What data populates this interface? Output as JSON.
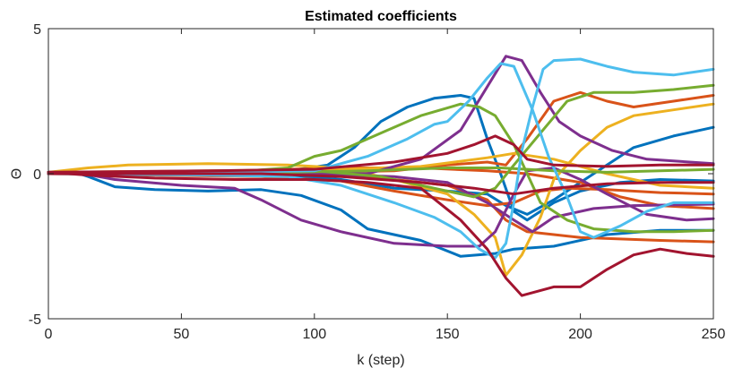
{
  "chart_data": {
    "type": "line",
    "title": "Estimated coefficients",
    "xlabel": "k (step)",
    "ylabel": "Θ",
    "xlim": [
      0,
      250
    ],
    "ylim": [
      -5,
      5
    ],
    "xticks": [
      0,
      50,
      100,
      150,
      200,
      250
    ],
    "yticks": [
      -5,
      0,
      5
    ],
    "xtick_labels": [
      "0",
      "50",
      "100",
      "150",
      "200",
      "250"
    ],
    "ytick_labels": [
      "-5",
      "0",
      "5"
    ],
    "grid": false,
    "legend": "none",
    "series": [
      {
        "color": "#0072BD",
        "points": [
          [
            0,
            0.05
          ],
          [
            10,
            0.05
          ],
          [
            15,
            -0.1
          ],
          [
            25,
            -0.45
          ],
          [
            40,
            -0.55
          ],
          [
            60,
            -0.6
          ],
          [
            80,
            -0.55
          ],
          [
            95,
            -0.75
          ],
          [
            110,
            -1.25
          ],
          [
            120,
            -1.9
          ],
          [
            140,
            -2.3
          ],
          [
            155,
            -2.85
          ],
          [
            168,
            -2.75
          ],
          [
            175,
            -2.6
          ],
          [
            190,
            -2.5
          ],
          [
            210,
            -2.1
          ],
          [
            230,
            -1.95
          ],
          [
            250,
            -1.95
          ]
        ]
      },
      {
        "color": "#0072BD",
        "points": [
          [
            0,
            0.0
          ],
          [
            30,
            0.05
          ],
          [
            60,
            0.05
          ],
          [
            90,
            0.1
          ],
          [
            105,
            0.3
          ],
          [
            115,
            0.9
          ],
          [
            125,
            1.8
          ],
          [
            135,
            2.3
          ],
          [
            145,
            2.6
          ],
          [
            155,
            2.7
          ],
          [
            160,
            2.6
          ],
          [
            165,
            1.2
          ],
          [
            170,
            0.0
          ],
          [
            175,
            -1.3
          ],
          [
            180,
            -1.6
          ],
          [
            190,
            -1.0
          ],
          [
            200,
            -0.6
          ],
          [
            215,
            -0.3
          ],
          [
            230,
            -0.2
          ],
          [
            250,
            -0.25
          ]
        ]
      },
      {
        "color": "#0072BD",
        "points": [
          [
            0,
            0.0
          ],
          [
            50,
            0.0
          ],
          [
            90,
            -0.05
          ],
          [
            110,
            -0.2
          ],
          [
            130,
            -0.5
          ],
          [
            150,
            -0.6
          ],
          [
            165,
            -0.7
          ],
          [
            172,
            -1.1
          ],
          [
            180,
            -1.4
          ],
          [
            190,
            -0.9
          ],
          [
            200,
            -0.3
          ],
          [
            210,
            0.3
          ],
          [
            220,
            0.9
          ],
          [
            235,
            1.3
          ],
          [
            250,
            1.6
          ]
        ]
      },
      {
        "color": "#D95319",
        "points": [
          [
            0,
            0.0
          ],
          [
            40,
            -0.05
          ],
          [
            80,
            -0.1
          ],
          [
            110,
            -0.25
          ],
          [
            130,
            -0.6
          ],
          [
            150,
            -0.9
          ],
          [
            165,
            -1.1
          ],
          [
            175,
            -1.0
          ],
          [
            185,
            -0.6
          ],
          [
            195,
            -0.5
          ],
          [
            210,
            -0.55
          ],
          [
            230,
            -0.65
          ],
          [
            250,
            -0.7
          ]
        ]
      },
      {
        "color": "#D95319",
        "points": [
          [
            0,
            0.0
          ],
          [
            60,
            0.05
          ],
          [
            100,
            0.05
          ],
          [
            130,
            0.1
          ],
          [
            150,
            0.3
          ],
          [
            165,
            0.4
          ],
          [
            172,
            0.3
          ],
          [
            180,
            1.2
          ],
          [
            190,
            2.5
          ],
          [
            200,
            2.8
          ],
          [
            210,
            2.5
          ],
          [
            220,
            2.3
          ],
          [
            235,
            2.5
          ],
          [
            250,
            2.7
          ]
        ]
      },
      {
        "color": "#D95319",
        "points": [
          [
            0,
            0.0
          ],
          [
            80,
            0.0
          ],
          [
            120,
            -0.1
          ],
          [
            150,
            -0.4
          ],
          [
            165,
            -0.9
          ],
          [
            172,
            -1.6
          ],
          [
            180,
            -2.0
          ],
          [
            190,
            -2.1
          ],
          [
            200,
            -2.2
          ],
          [
            215,
            -2.25
          ],
          [
            230,
            -2.3
          ],
          [
            250,
            -2.35
          ]
        ]
      },
      {
        "color": "#D95319",
        "points": [
          [
            0,
            0.05
          ],
          [
            70,
            0.1
          ],
          [
            110,
            0.2
          ],
          [
            140,
            0.2
          ],
          [
            165,
            0.1
          ],
          [
            180,
            0.0
          ],
          [
            200,
            -0.3
          ],
          [
            215,
            -0.8
          ],
          [
            230,
            -1.1
          ],
          [
            250,
            -1.2
          ]
        ]
      },
      {
        "color": "#EDB120",
        "points": [
          [
            0,
            0.05
          ],
          [
            15,
            0.2
          ],
          [
            30,
            0.3
          ],
          [
            60,
            0.35
          ],
          [
            90,
            0.3
          ],
          [
            110,
            0.2
          ],
          [
            130,
            -0.2
          ],
          [
            150,
            -0.7
          ],
          [
            160,
            -1.4
          ],
          [
            168,
            -2.2
          ],
          [
            172,
            -3.5
          ],
          [
            178,
            -2.8
          ],
          [
            185,
            -1.5
          ],
          [
            190,
            -0.2
          ],
          [
            200,
            0.8
          ],
          [
            210,
            1.6
          ],
          [
            220,
            2.0
          ],
          [
            235,
            2.2
          ],
          [
            250,
            2.4
          ]
        ]
      },
      {
        "color": "#EDB120",
        "points": [
          [
            0,
            0.05
          ],
          [
            60,
            0.1
          ],
          [
            110,
            0.15
          ],
          [
            140,
            0.25
          ],
          [
            165,
            0.55
          ],
          [
            175,
            0.7
          ],
          [
            190,
            0.5
          ],
          [
            210,
            0.0
          ],
          [
            230,
            -0.4
          ],
          [
            250,
            -0.5
          ]
        ]
      },
      {
        "color": "#7E2F8E",
        "points": [
          [
            0,
            0.05
          ],
          [
            10,
            0.05
          ],
          [
            25,
            -0.2
          ],
          [
            50,
            -0.4
          ],
          [
            70,
            -0.5
          ],
          [
            80,
            -0.9
          ],
          [
            95,
            -1.6
          ],
          [
            110,
            -2.0
          ],
          [
            130,
            -2.4
          ],
          [
            150,
            -2.5
          ],
          [
            162,
            -2.5
          ],
          [
            168,
            -2.0
          ],
          [
            175,
            -0.7
          ],
          [
            180,
            0.1
          ],
          [
            190,
            0.2
          ],
          [
            200,
            -0.2
          ],
          [
            210,
            -0.7
          ],
          [
            225,
            -1.4
          ],
          [
            240,
            -1.6
          ],
          [
            250,
            -1.55
          ]
        ]
      },
      {
        "color": "#7E2F8E",
        "points": [
          [
            0,
            0.05
          ],
          [
            90,
            0.0
          ],
          [
            120,
            0.0
          ],
          [
            140,
            0.5
          ],
          [
            155,
            1.5
          ],
          [
            165,
            3.0
          ],
          [
            172,
            4.05
          ],
          [
            178,
            3.9
          ],
          [
            185,
            2.8
          ],
          [
            192,
            1.8
          ],
          [
            200,
            1.3
          ],
          [
            212,
            0.8
          ],
          [
            225,
            0.5
          ],
          [
            250,
            0.35
          ]
        ]
      },
      {
        "color": "#7E2F8E",
        "points": [
          [
            0,
            0.0
          ],
          [
            60,
            0.0
          ],
          [
            100,
            0.0
          ],
          [
            130,
            -0.1
          ],
          [
            150,
            -0.3
          ],
          [
            165,
            -1.0
          ],
          [
            175,
            -1.6
          ],
          [
            182,
            -2.0
          ],
          [
            190,
            -1.5
          ],
          [
            205,
            -1.2
          ],
          [
            220,
            -1.1
          ],
          [
            250,
            -1.05
          ]
        ]
      },
      {
        "color": "#77AC30",
        "points": [
          [
            0,
            0.0
          ],
          [
            60,
            0.0
          ],
          [
            90,
            0.2
          ],
          [
            100,
            0.6
          ],
          [
            110,
            0.8
          ],
          [
            125,
            1.4
          ],
          [
            140,
            2.0
          ],
          [
            155,
            2.4
          ],
          [
            162,
            2.3
          ],
          [
            168,
            2.0
          ],
          [
            175,
            1.0
          ],
          [
            180,
            0.0
          ],
          [
            185,
            -1.0
          ],
          [
            195,
            -1.6
          ],
          [
            205,
            -1.9
          ],
          [
            220,
            -2.0
          ],
          [
            235,
            -2.0
          ],
          [
            250,
            -1.95
          ]
        ]
      },
      {
        "color": "#77AC30",
        "points": [
          [
            0,
            0.0
          ],
          [
            70,
            0.05
          ],
          [
            100,
            0.1
          ],
          [
            125,
            -0.1
          ],
          [
            145,
            -0.5
          ],
          [
            160,
            -0.8
          ],
          [
            168,
            -0.5
          ],
          [
            175,
            0.3
          ],
          [
            185,
            1.4
          ],
          [
            195,
            2.5
          ],
          [
            205,
            2.8
          ],
          [
            220,
            2.8
          ],
          [
            235,
            2.9
          ],
          [
            250,
            3.05
          ]
        ]
      },
      {
        "color": "#77AC30",
        "points": [
          [
            0,
            0.0
          ],
          [
            60,
            0.0
          ],
          [
            90,
            0.05
          ],
          [
            120,
            0.1
          ],
          [
            150,
            0.2
          ],
          [
            170,
            0.2
          ],
          [
            190,
            0.1
          ],
          [
            210,
            0.05
          ],
          [
            230,
            0.1
          ],
          [
            250,
            0.15
          ]
        ]
      },
      {
        "color": "#4DBEEE",
        "points": [
          [
            0,
            0.0
          ],
          [
            60,
            -0.05
          ],
          [
            90,
            -0.1
          ],
          [
            110,
            -0.4
          ],
          [
            130,
            -1.0
          ],
          [
            145,
            -1.5
          ],
          [
            155,
            -2.0
          ],
          [
            162,
            -2.6
          ],
          [
            168,
            -2.9
          ],
          [
            172,
            -2.4
          ],
          [
            175,
            -1.0
          ],
          [
            178,
            0.8
          ],
          [
            182,
            2.3
          ],
          [
            186,
            3.6
          ],
          [
            190,
            3.9
          ],
          [
            200,
            3.95
          ],
          [
            210,
            3.7
          ],
          [
            220,
            3.5
          ],
          [
            235,
            3.4
          ],
          [
            250,
            3.6
          ]
        ]
      },
      {
        "color": "#4DBEEE",
        "points": [
          [
            0,
            0.0
          ],
          [
            60,
            0.05
          ],
          [
            100,
            0.1
          ],
          [
            120,
            0.6
          ],
          [
            135,
            1.2
          ],
          [
            145,
            1.7
          ],
          [
            150,
            1.8
          ],
          [
            158,
            2.5
          ],
          [
            165,
            3.3
          ],
          [
            170,
            3.8
          ],
          [
            175,
            3.7
          ],
          [
            182,
            2.2
          ],
          [
            188,
            0.6
          ],
          [
            195,
            -0.8
          ],
          [
            200,
            -2.0
          ],
          [
            205,
            -2.2
          ],
          [
            215,
            -1.8
          ],
          [
            225,
            -1.3
          ],
          [
            235,
            -1.0
          ],
          [
            250,
            -1.0
          ]
        ]
      },
      {
        "color": "#A2142F",
        "points": [
          [
            0,
            0.05
          ],
          [
            15,
            -0.05
          ],
          [
            40,
            -0.15
          ],
          [
            70,
            -0.2
          ],
          [
            100,
            -0.2
          ],
          [
            120,
            -0.3
          ],
          [
            140,
            -0.5
          ],
          [
            155,
            -1.6
          ],
          [
            165,
            -2.6
          ],
          [
            172,
            -3.6
          ],
          [
            178,
            -4.2
          ],
          [
            190,
            -3.9
          ],
          [
            200,
            -3.9
          ],
          [
            210,
            -3.3
          ],
          [
            220,
            -2.8
          ],
          [
            230,
            -2.6
          ],
          [
            240,
            -2.75
          ],
          [
            250,
            -2.85
          ]
        ]
      },
      {
        "color": "#A2142F",
        "points": [
          [
            0,
            0.05
          ],
          [
            60,
            0.1
          ],
          [
            100,
            0.15
          ],
          [
            130,
            0.4
          ],
          [
            150,
            0.7
          ],
          [
            160,
            1.0
          ],
          [
            168,
            1.3
          ],
          [
            175,
            1.0
          ],
          [
            180,
            0.5
          ],
          [
            190,
            0.3
          ],
          [
            210,
            0.25
          ],
          [
            230,
            0.3
          ],
          [
            250,
            0.3
          ]
        ]
      },
      {
        "color": "#A2142F",
        "points": [
          [
            0,
            0.0
          ],
          [
            80,
            0.0
          ],
          [
            110,
            -0.1
          ],
          [
            140,
            -0.3
          ],
          [
            160,
            -0.5
          ],
          [
            175,
            -0.7
          ],
          [
            190,
            -0.5
          ],
          [
            210,
            -0.35
          ],
          [
            230,
            -0.3
          ],
          [
            250,
            -0.3
          ]
        ]
      }
    ]
  }
}
